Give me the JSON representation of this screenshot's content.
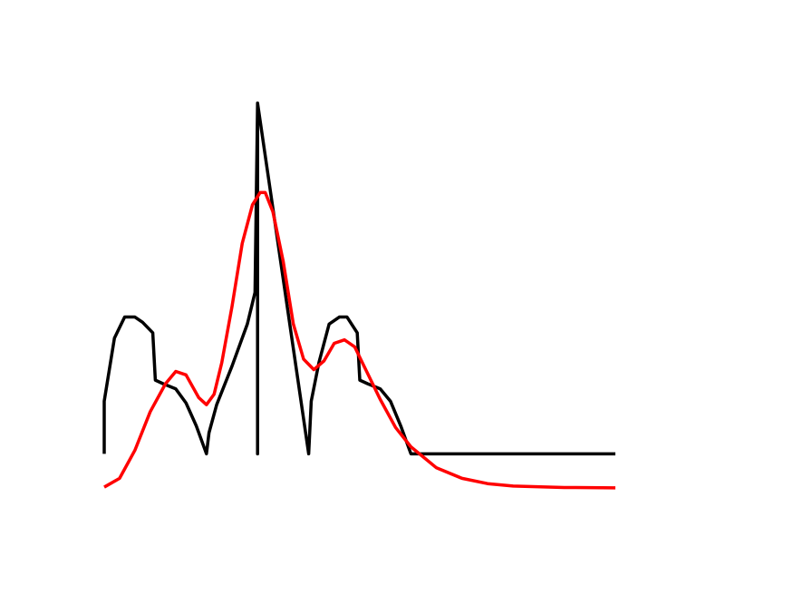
{
  "chart_data": {
    "type": "line",
    "title": "",
    "xlabel": "",
    "ylabel": "",
    "xlim": [
      0,
      10
    ],
    "ylim": [
      -0.1,
      1.1
    ],
    "axes_visible": false,
    "grid": false,
    "legend": "none",
    "series": [
      {
        "color": "#000000",
        "x": [
          0,
          0,
          0.2,
          0.4,
          0.6,
          0.75,
          0.95,
          1.0,
          1.15,
          1.4,
          1.6,
          1.8,
          2.0,
          2.05,
          2.2,
          2.5,
          2.8,
          2.95,
          3.0,
          3.0,
          3.0,
          3.5,
          4.0,
          4.05,
          4.2,
          4.4,
          4.6,
          4.75,
          4.95,
          5.0,
          5.15,
          5.4,
          5.6,
          5.8,
          6.0,
          10.0
        ],
        "y": [
          0,
          0.15,
          0.33,
          0.39,
          0.39,
          0.375,
          0.345,
          0.21,
          0.2,
          0.185,
          0.145,
          0.08,
          0,
          0.06,
          0.14,
          0.25,
          0.37,
          0.46,
          1.0,
          0,
          1.0,
          0.5,
          0,
          0.15,
          0.26,
          0.37,
          0.39,
          0.39,
          0.345,
          0.21,
          0.2,
          0.185,
          0.15,
          0.08,
          0,
          0
        ]
      },
      {
        "color": "#ff0000",
        "x": [
          0,
          0.3,
          0.6,
          0.9,
          1.2,
          1.4,
          1.6,
          1.85,
          2.0,
          2.15,
          2.3,
          2.5,
          2.7,
          2.9,
          3.05,
          3.15,
          3.3,
          3.5,
          3.7,
          3.9,
          4.1,
          4.3,
          4.5,
          4.7,
          4.9,
          5.1,
          5.4,
          5.7,
          6.0,
          6.5,
          7.0,
          7.5,
          8.0,
          9.0,
          10.0
        ],
        "y": [
          -0.095,
          -0.07,
          0.01,
          0.12,
          0.2,
          0.235,
          0.225,
          0.16,
          0.14,
          0.17,
          0.26,
          0.42,
          0.6,
          0.71,
          0.745,
          0.745,
          0.69,
          0.55,
          0.37,
          0.27,
          0.24,
          0.265,
          0.315,
          0.325,
          0.305,
          0.245,
          0.155,
          0.075,
          0.02,
          -0.04,
          -0.07,
          -0.085,
          -0.092,
          -0.096,
          -0.097
        ]
      }
    ]
  }
}
